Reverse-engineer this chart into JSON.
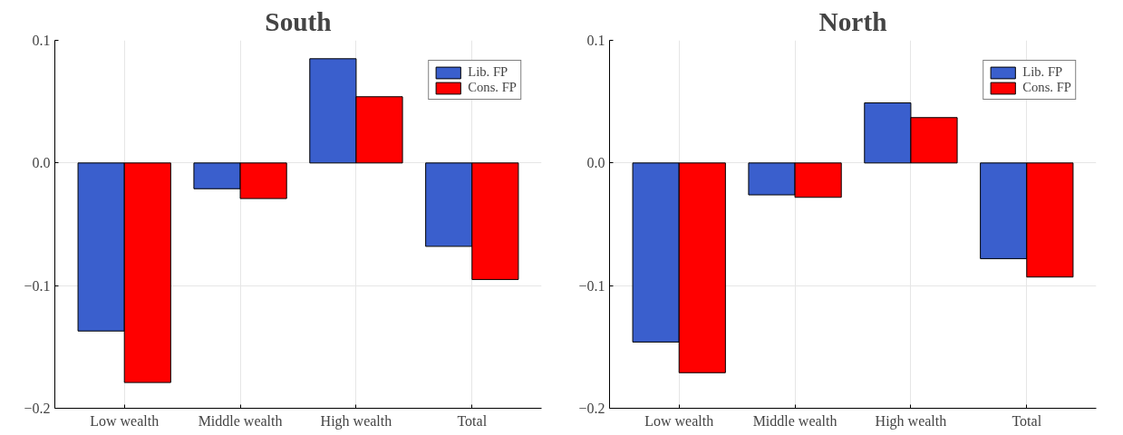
{
  "chart_data": [
    {
      "type": "bar",
      "title": "South",
      "categories": [
        "Low wealth",
        "Middle wealth",
        "High wealth",
        "Total"
      ],
      "series": [
        {
          "name": "Lib. FP",
          "color": "#3a5fcd",
          "values": [
            -0.137,
            -0.021,
            0.085,
            -0.068
          ]
        },
        {
          "name": "Cons. FP",
          "color": "#ff0000",
          "values": [
            -0.179,
            -0.029,
            0.054,
            -0.095
          ]
        }
      ],
      "ylim": [
        -0.2,
        0.1
      ],
      "yticks": [
        {
          "value": -0.2,
          "label": "−0.2"
        },
        {
          "value": -0.1,
          "label": "−0.1"
        },
        {
          "value": 0.0,
          "label": "0.0"
        },
        {
          "value": 0.1,
          "label": "0.1"
        }
      ],
      "grid": true,
      "legend": "top right"
    },
    {
      "type": "bar",
      "title": "North",
      "categories": [
        "Low wealth",
        "Middle wealth",
        "High wealth",
        "Total"
      ],
      "series": [
        {
          "name": "Lib. FP",
          "color": "#3a5fcd",
          "values": [
            -0.146,
            -0.026,
            0.049,
            -0.078
          ]
        },
        {
          "name": "Cons. FP",
          "color": "#ff0000",
          "values": [
            -0.171,
            -0.028,
            0.037,
            -0.093
          ]
        }
      ],
      "ylim": [
        -0.2,
        0.1
      ],
      "yticks": [
        {
          "value": -0.2,
          "label": "−0.2"
        },
        {
          "value": -0.1,
          "label": "−0.1"
        },
        {
          "value": 0.0,
          "label": "0.0"
        },
        {
          "value": 0.1,
          "label": "0.1"
        }
      ],
      "grid": true,
      "legend": "top right"
    }
  ]
}
